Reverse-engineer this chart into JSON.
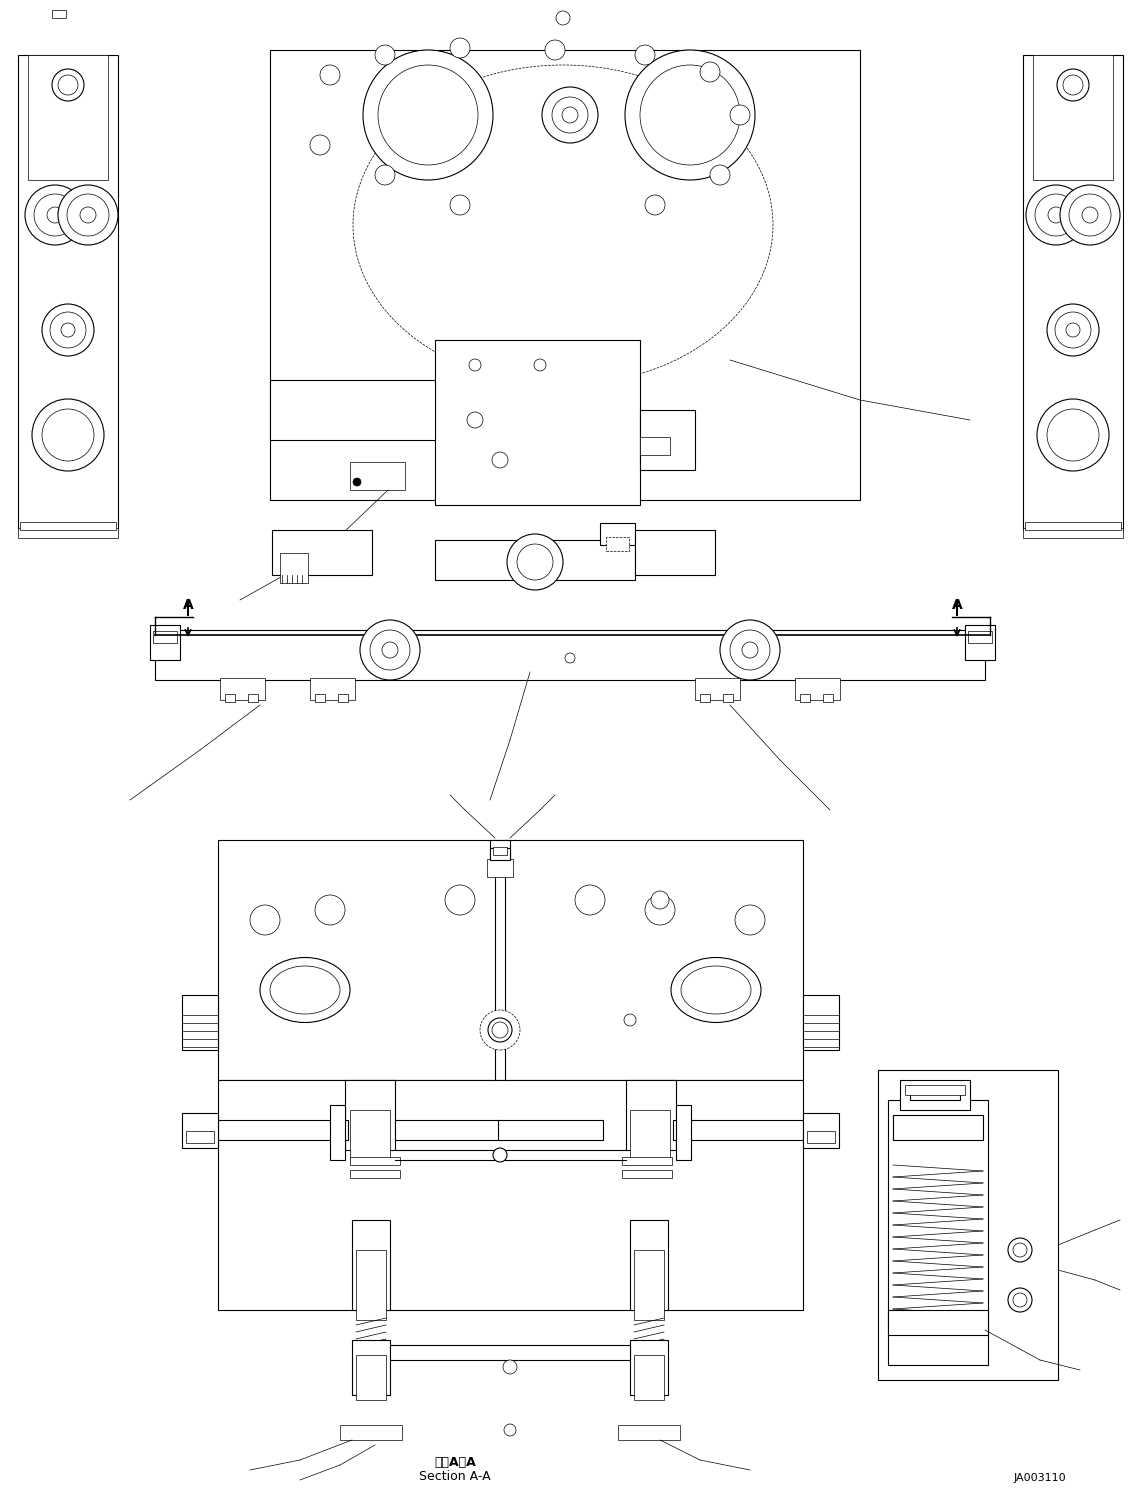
{
  "bg_color": "#ffffff",
  "line_color": "#000000",
  "label_section_ja": "断面A－A",
  "label_section_en": "Section A-A",
  "label_drawing_no": "JA003110",
  "fig_width": 11.41,
  "fig_height": 14.92
}
